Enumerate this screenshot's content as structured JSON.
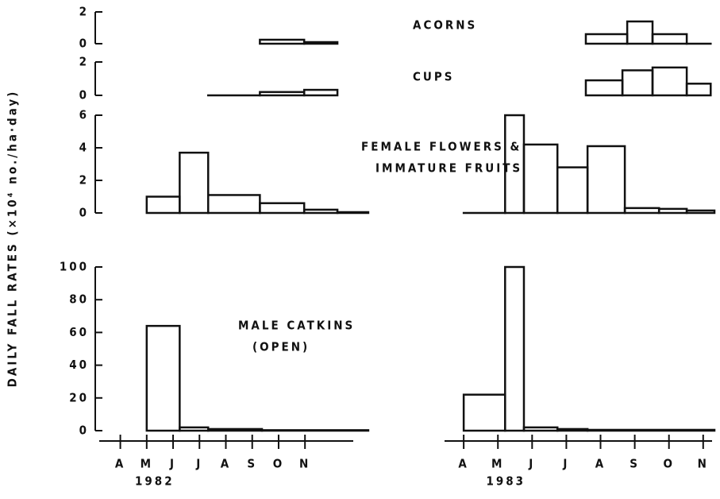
{
  "ylabel": "DAILY FALL RATES (×10⁴ no./ha·day)",
  "x_axes": [
    {
      "label": "1982",
      "xlim": [
        3.2,
        12.83
      ],
      "xticks": [
        {
          "value": 4,
          "label": "A"
        },
        {
          "value": 5,
          "label": "M"
        },
        {
          "value": 6,
          "label": "J"
        },
        {
          "value": 7,
          "label": "J"
        },
        {
          "value": 8,
          "label": "A"
        },
        {
          "value": 9,
          "label": "S"
        },
        {
          "value": 10,
          "label": "O"
        },
        {
          "value": 11,
          "label": "N"
        }
      ]
    },
    {
      "label": "1983",
      "xlim": [
        3.44,
        11.26
      ],
      "xticks": [
        {
          "value": 4,
          "label": "A"
        },
        {
          "value": 5,
          "label": "M"
        },
        {
          "value": 6,
          "label": "J"
        },
        {
          "value": 7,
          "label": "J"
        },
        {
          "value": 8,
          "label": "A"
        },
        {
          "value": 9,
          "label": "S"
        },
        {
          "value": 10,
          "label": "O"
        },
        {
          "value": 11,
          "label": "N"
        }
      ]
    }
  ],
  "chart_data": [
    {
      "type": "histogram",
      "title": [
        "ACORNS"
      ],
      "ylim": [
        0,
        2
      ],
      "yticks": [
        0,
        2
      ],
      "series": [
        {
          "x_axis": 0,
          "bins": [
            9.29,
            10.97,
            12.23
          ],
          "values": [
            0.25,
            0.1
          ]
        },
        {
          "x_axis": 1,
          "bins": [
            7.57,
            8.78,
            9.52,
            10.52,
            11.22
          ],
          "values": [
            0.6,
            1.4,
            0.6,
            0
          ]
        }
      ]
    },
    {
      "type": "histogram",
      "title": [
        "CUPS"
      ],
      "ylim": [
        0,
        2
      ],
      "yticks": [
        0,
        2
      ],
      "series": [
        {
          "x_axis": 0,
          "bins": [
            7.33,
            9.29,
            10.97,
            12.23
          ],
          "values": [
            0,
            0.2,
            0.33
          ]
        },
        {
          "x_axis": 1,
          "bins": [
            7.57,
            8.64,
            9.52,
            10.52,
            11.22
          ],
          "values": [
            0.9,
            1.5,
            1.67,
            0.7
          ]
        }
      ]
    },
    {
      "type": "histogram",
      "title": [
        "FEMALE FLOWERS &",
        "IMMATURE FRUITS"
      ],
      "ylim": [
        0,
        6
      ],
      "yticks": [
        0,
        2,
        4,
        6
      ],
      "series": [
        {
          "x_axis": 0,
          "bins": [
            5.0,
            6.25,
            7.33,
            9.29,
            10.97,
            12.23,
            13.4
          ],
          "values": [
            1.0,
            3.7,
            1.1,
            0.6,
            0.2,
            0.05
          ]
        },
        {
          "x_axis": 1,
          "bins": [
            4.0,
            5.21,
            5.76,
            6.74,
            7.62,
            8.71,
            9.71,
            10.52,
            11.33
          ],
          "values": [
            0,
            6.0,
            4.2,
            2.8,
            4.1,
            0.3,
            0.25,
            0.15
          ]
        }
      ]
    },
    {
      "type": "histogram",
      "title": [
        "MALE CATKINS",
        "(OPEN)"
      ],
      "ylim": [
        0,
        100
      ],
      "yticks": [
        0,
        20,
        40,
        60,
        80,
        100
      ],
      "series": [
        {
          "x_axis": 0,
          "bins": [
            5.0,
            6.25,
            7.33,
            9.37,
            13.4
          ],
          "values": [
            64,
            2,
            1,
            0.3
          ]
        },
        {
          "x_axis": 1,
          "bins": [
            4.0,
            5.21,
            5.76,
            6.74,
            7.62,
            11.33
          ],
          "values": [
            22,
            100,
            2,
            1,
            0.5
          ]
        }
      ]
    }
  ]
}
